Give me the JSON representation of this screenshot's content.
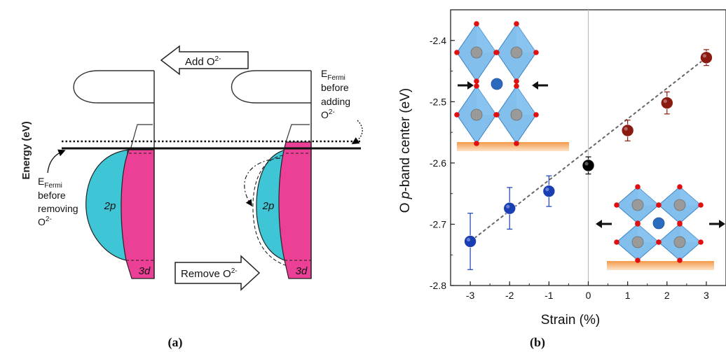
{
  "panel_a": {
    "caption": "(a)",
    "y_axis_label": "Energy (eV)",
    "add_arrow_label": "Add O",
    "add_arrow_sup": "2-",
    "remove_arrow_label": "Remove O",
    "remove_arrow_sup": "2-",
    "fermi_left": {
      "line1": "E",
      "line1_sub": "Fermi",
      "line2": "before",
      "line3": "removing",
      "line4": "O",
      "line4_sup": "2-"
    },
    "fermi_right": {
      "line1": "E",
      "line1_sub": "Fermi",
      "line2": "before",
      "line3": "adding",
      "line4": "O",
      "line4_sup": "2-"
    },
    "band_2p": "2p",
    "band_3d": "3d",
    "colors": {
      "band_2p": "#3ec6d6",
      "band_3d": "#ec3f96"
    }
  },
  "panel_b": {
    "caption": "(b)",
    "chart_data": {
      "type": "scatter",
      "xlabel": "Strain (%)",
      "ylabel_prefix": "O ",
      "ylabel_italic": "p",
      "ylabel_suffix": "-band center (eV)",
      "xlim": [
        -3.5,
        3.5
      ],
      "ylim": [
        -2.8,
        -2.35
      ],
      "x_ticks": [
        -3,
        -2,
        -1,
        0,
        1,
        2,
        3
      ],
      "x_tick_labels": [
        "-3",
        "-2",
        "-1",
        "0",
        "1",
        "2",
        "3"
      ],
      "y_ticks": [
        -2.4,
        -2.5,
        -2.6,
        -2.7,
        -2.8
      ],
      "y_tick_labels": [
        "-2.4",
        "-2.5",
        "-2.6",
        "-2.7",
        "-2.8"
      ],
      "trend_line": {
        "from": [
          -3,
          -2.728
        ],
        "to": [
          3,
          -2.428
        ],
        "style": "dotted"
      },
      "reference_line_x": 0,
      "series": [
        {
          "color": "#1a3fb5",
          "points": [
            {
              "x": -3,
              "y": -2.728,
              "err": 0.046
            },
            {
              "x": -2,
              "y": -2.674,
              "err": 0.034
            },
            {
              "x": -1,
              "y": -2.646,
              "err": 0.025
            }
          ]
        },
        {
          "color": "#000000",
          "points": [
            {
              "x": 0,
              "y": -2.604,
              "err": 0.014
            }
          ]
        },
        {
          "color": "#8b1a10",
          "points": [
            {
              "x": 1,
              "y": -2.547,
              "err": 0.017
            },
            {
              "x": 2,
              "y": -2.502,
              "err": 0.018
            },
            {
              "x": 3,
              "y": -2.428,
              "err": 0.013
            }
          ]
        }
      ],
      "insets": [
        {
          "name": "compressive-structure",
          "arrows": "inward"
        },
        {
          "name": "tensile-structure",
          "arrows": "outward"
        }
      ],
      "colors": {
        "octahedra": "#5aa9e6",
        "oxygen": "#e01010",
        "a_site": "#2a6bbf",
        "b_site": "#9a9a9a",
        "substrate": "#f4a460"
      }
    }
  }
}
